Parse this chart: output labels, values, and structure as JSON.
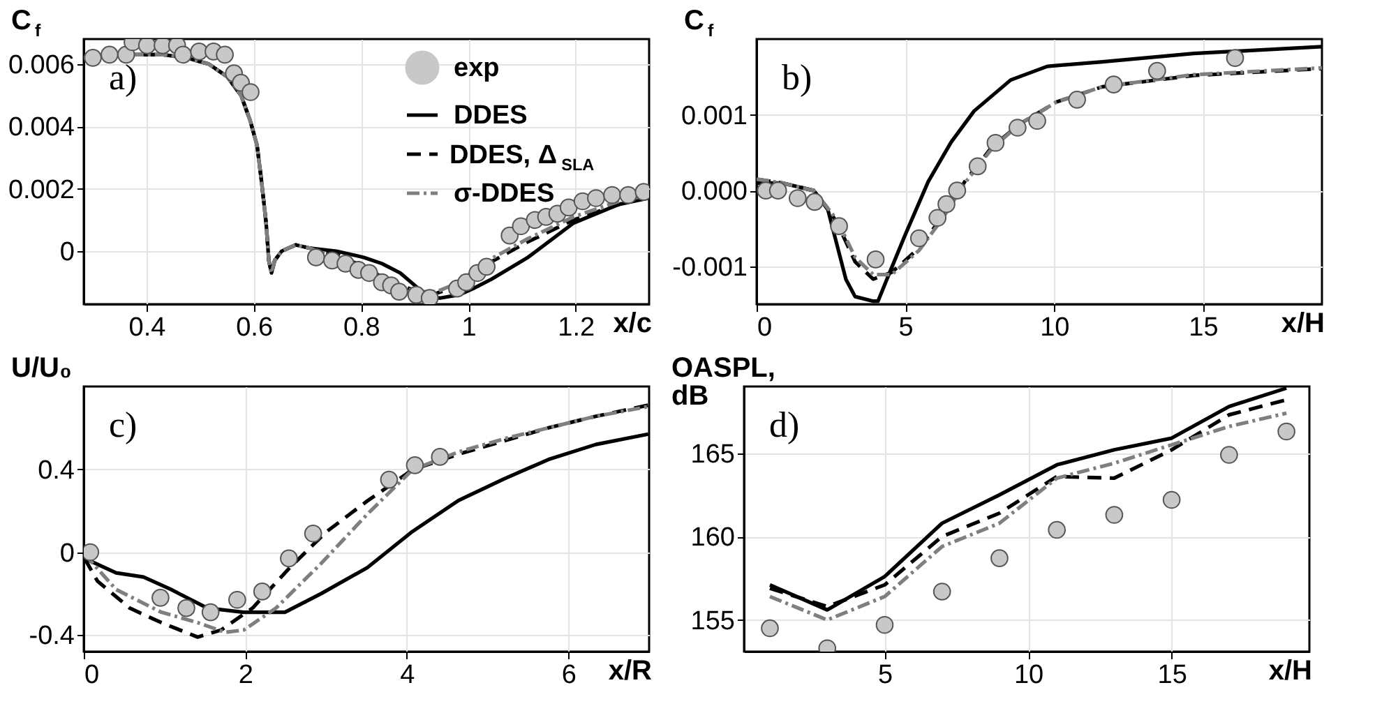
{
  "chart_data": [
    {
      "type": "line",
      "ylabel": "C$_{f}$",
      "xlabel": "x/c",
      "annotations": [
        "a)"
      ],
      "xlim": [
        0.283,
        1.337
      ],
      "ylim": [
        -0.0017,
        0.0068
      ],
      "xticks": [
        0.4,
        0.6,
        0.8,
        1,
        1.2
      ],
      "yticks": [
        0,
        0.002,
        0.004,
        0.006
      ],
      "grid": true,
      "legend": "top right",
      "series": [
        {
          "name": "exp",
          "type": "scatter",
          "marker": "circle",
          "color": "#c8c8c8",
          "x": [
            0.3,
            0.331,
            0.362,
            0.374,
            0.401,
            0.43,
            0.457,
            0.468,
            0.498,
            0.525,
            0.546,
            0.563,
            0.576,
            0.594,
            0.716,
            0.746,
            0.771,
            0.795,
            0.815,
            0.839,
            0.856,
            0.871,
            0.903,
            0.928,
            0.979,
            0.996,
            1.017,
            1.034,
            1.077,
            1.098,
            1.124,
            1.145,
            1.166,
            1.187,
            1.213,
            1.238,
            1.268,
            1.298,
            1.327
          ],
          "values": [
            0.0062,
            0.0063,
            0.0063,
            0.0067,
            0.0066,
            0.0066,
            0.0066,
            0.0063,
            0.0064,
            0.0064,
            0.0063,
            0.0057,
            0.0054,
            0.0051,
            -0.0002,
            -0.0003,
            -0.0004,
            -0.0006,
            -0.0007,
            -0.001,
            -0.0011,
            -0.0013,
            -0.0014,
            -0.0015,
            -0.0012,
            -0.001,
            -0.0007,
            -0.0005,
            0.0005,
            0.0008,
            0.001,
            0.0011,
            0.0012,
            0.0014,
            0.0016,
            0.0017,
            0.0018,
            0.0018,
            0.0019
          ]
        },
        {
          "name": "DDES",
          "line_style": "solid",
          "color": "#000000",
          "x": [
            0.283,
            0.346,
            0.431,
            0.474,
            0.516,
            0.55,
            0.576,
            0.593,
            0.606,
            0.614,
            0.623,
            0.628,
            0.633,
            0.639,
            0.652,
            0.678,
            0.703,
            0.754,
            0.805,
            0.839,
            0.873,
            0.907,
            0.928,
            0.949,
            0.983,
            1.009,
            1.043,
            1.111,
            1.196,
            1.281,
            1.336
          ],
          "values": [
            0.0062,
            0.0063,
            0.0063,
            0.0062,
            0.006,
            0.0056,
            0.005,
            0.0042,
            0.0034,
            0.0023,
            0.0009,
            -0.0003,
            -0.0007,
            -0.0003,
            0.0,
            0.0002,
            0.0001,
            0.0,
            -0.0002,
            -0.0004,
            -0.0007,
            -0.0012,
            -0.0015,
            -0.0015,
            -0.0014,
            -0.0012,
            -0.0009,
            -0.0002,
            0.0009,
            0.0015,
            0.0017
          ]
        },
        {
          "name": "DDES, Δ$_{SLA}$",
          "line_style": "dashed",
          "color": "#000000",
          "x": [
            0.283,
            0.346,
            0.431,
            0.474,
            0.516,
            0.55,
            0.576,
            0.593,
            0.606,
            0.614,
            0.623,
            0.628,
            0.633,
            0.639,
            0.652,
            0.678,
            0.703,
            0.754,
            0.805,
            0.856,
            0.907,
            0.932,
            0.983,
            1.026,
            1.111,
            1.196,
            1.281,
            1.336
          ],
          "values": [
            0.0062,
            0.0063,
            0.0063,
            0.0062,
            0.006,
            0.0056,
            0.005,
            0.0042,
            0.0034,
            0.0023,
            0.0009,
            -0.0003,
            -0.0007,
            -0.0003,
            0.0,
            0.0002,
            0.0001,
            -0.0001,
            -0.0005,
            -0.001,
            -0.0013,
            -0.0014,
            -0.0011,
            -0.0005,
            0.0003,
            0.001,
            0.0015,
            0.0018
          ]
        },
        {
          "name": "σ-DDES",
          "line_style": "dashdot",
          "color": "#7f7f7f",
          "x": [
            0.283,
            0.346,
            0.431,
            0.474,
            0.516,
            0.55,
            0.576,
            0.593,
            0.606,
            0.614,
            0.623,
            0.628,
            0.633,
            0.639,
            0.652,
            0.678,
            0.703,
            0.754,
            0.805,
            0.856,
            0.907,
            0.941,
            0.983,
            1.026,
            1.111,
            1.196,
            1.281,
            1.336
          ],
          "values": [
            0.0062,
            0.0063,
            0.0063,
            0.0062,
            0.006,
            0.0056,
            0.005,
            0.0042,
            0.0034,
            0.0023,
            0.0009,
            -0.0003,
            -0.0007,
            -0.0003,
            0.0,
            0.0002,
            0.0001,
            -0.0002,
            -0.0007,
            -0.0011,
            -0.0013,
            -0.0013,
            -0.001,
            -0.0004,
            0.0004,
            0.0011,
            0.0016,
            0.0018
          ]
        }
      ]
    },
    {
      "type": "line",
      "ylabel": "C$_{f}$",
      "xlabel": "x/H",
      "annotations": [
        "b)"
      ],
      "xlim": [
        0,
        19
      ],
      "ylim": [
        -0.0015,
        0.002
      ],
      "xticks": [
        0,
        5,
        10,
        15
      ],
      "yticks": [
        -0.001,
        {
          "value": 0,
          "label": "0.000"
        },
        0.001
      ],
      "grid": true,
      "series": [
        {
          "type": "scatter",
          "marker": "circle",
          "color": "#c8c8c8",
          "x": [
            0.31,
            0.72,
            1.38,
            1.95,
            2.77,
            4.0,
            5.46,
            6.08,
            6.38,
            6.74,
            7.43,
            8.03,
            8.77,
            9.43,
            10.77,
            12.0,
            13.46,
            16.08
          ],
          "values": [
            0.0,
            0.0,
            -0.0001,
            -0.00015,
            -0.00047,
            -0.00091,
            -0.00063,
            -0.00036,
            -0.00018,
            0.0,
            0.00032,
            0.00063,
            0.00083,
            0.00092,
            0.0012,
            0.0014,
            0.00158,
            0.00175
          ]
        },
        {
          "line_style": "solid",
          "color": "#000000",
          "x": [
            0,
            0.85,
            1.92,
            2.38,
            2.69,
            3.0,
            3.31,
            3.92,
            4.08,
            4.38,
            5.0,
            5.77,
            6.54,
            7.31,
            8.54,
            9.77,
            11.62,
            14.69,
            19.0
          ],
          "values": [
            0.0001,
            0.0001,
            0,
            -0.00023,
            -0.0007,
            -0.00117,
            -0.0014,
            -0.00146,
            -0.00146,
            -0.00117,
            -0.00058,
            0.00012,
            0.00064,
            0.00105,
            0.00146,
            0.00164,
            0.0017,
            0.00181,
            0.0019
          ]
        },
        {
          "line_style": "dashed",
          "color": "#000000",
          "x": [
            0,
            0.85,
            1.92,
            2.69,
            3.31,
            3.92,
            4.54,
            5.46,
            6.23,
            7.0,
            7.92,
            8.85,
            10.08,
            11.62,
            14.69,
            19.0
          ],
          "values": [
            0.00015,
            0.0001,
            0,
            -0.00041,
            -0.00094,
            -0.00117,
            -0.00108,
            -0.00076,
            -0.00035,
            0.00012,
            0.00058,
            0.00088,
            0.00117,
            0.00137,
            0.00152,
            0.00161
          ]
        },
        {
          "line_style": "dashdot",
          "color": "#7f7f7f",
          "x": [
            0,
            0.85,
            1.92,
            2.69,
            3.31,
            3.92,
            4.54,
            5.46,
            6.23,
            7.0,
            7.92,
            8.85,
            10.08,
            11.62,
            14.69,
            19.0
          ],
          "values": [
            0.00015,
            0.0001,
            0.0,
            -0.00038,
            -0.00088,
            -0.00111,
            -0.00111,
            -0.00079,
            -0.00038,
            0.0001,
            0.00056,
            0.00088,
            0.00117,
            0.00137,
            0.00153,
            0.00162
          ]
        }
      ]
    },
    {
      "type": "line",
      "ylabel": "U/U₀",
      "xlabel": "x/R",
      "annotations": [
        "c)"
      ],
      "xlim": [
        0,
        7
      ],
      "ylim": [
        -0.48,
        0.8
      ],
      "xticks": [
        0,
        2,
        4,
        6
      ],
      "yticks": [
        -0.4,
        0,
        0.4
      ],
      "grid": true,
      "series": [
        {
          "type": "scatter",
          "marker": "circle",
          "color": "#c8c8c8",
          "x": [
            0.08,
            0.95,
            1.27,
            1.57,
            1.9,
            2.21,
            2.54,
            2.84,
            3.78,
            4.1,
            4.41
          ],
          "values": [
            0,
            -0.22,
            -0.27,
            -0.29,
            -0.23,
            -0.19,
            -0.03,
            0.09,
            0.35,
            0.42,
            0.46
          ]
        },
        {
          "line_style": "solid",
          "color": "#000000",
          "x": [
            0.01,
            0.4,
            0.74,
            1.08,
            1.53,
            1.98,
            2.49,
            2.94,
            3.51,
            4.07,
            4.64,
            5.21,
            5.77,
            6.34,
            6.99
          ],
          "values": [
            -0.03,
            -0.1,
            -0.12,
            -0.18,
            -0.27,
            -0.29,
            -0.29,
            -0.2,
            -0.075,
            0.1,
            0.25,
            0.355,
            0.45,
            0.52,
            0.57
          ]
        },
        {
          "line_style": "dashed",
          "color": "#000000",
          "x": [
            0.01,
            0.17,
            0.57,
            0.96,
            1.41,
            1.7,
            2.09,
            2.55,
            3.0,
            3.51,
            4.07,
            4.64,
            5.21,
            5.77,
            6.34,
            6.99
          ],
          "values": [
            -0.03,
            -0.14,
            -0.27,
            -0.34,
            -0.41,
            -0.376,
            -0.27,
            -0.075,
            0.097,
            0.247,
            0.398,
            0.473,
            0.538,
            0.602,
            0.656,
            0.71
          ]
        },
        {
          "line_style": "dashdot",
          "color": "#7f7f7f",
          "x": [
            0.01,
            0.4,
            0.96,
            1.41,
            1.75,
            1.98,
            2.38,
            2.94,
            3.51,
            4.07,
            4.64,
            5.21,
            5.77,
            6.34,
            6.99
          ],
          "values": [
            -0.01,
            -0.18,
            -0.29,
            -0.34,
            -0.387,
            -0.376,
            -0.27,
            -0.054,
            0.183,
            0.398,
            0.484,
            0.548,
            0.602,
            0.656,
            0.703
          ]
        }
      ]
    },
    {
      "type": "line",
      "ylabel": "OASPL,\ndB",
      "xlabel": "x/H",
      "annotations": [
        "d)"
      ],
      "xlim": [
        0.1,
        19.8
      ],
      "ylim": [
        153.1,
        169.0
      ],
      "xticks": [
        5,
        10,
        15
      ],
      "yticks": [
        155,
        160,
        165
      ],
      "grid": true,
      "series": [
        {
          "type": "scatter",
          "marker": "circle",
          "color": "#c8c8c8",
          "x": [
            1,
            3,
            5,
            7,
            9,
            11,
            13,
            15,
            17,
            19
          ],
          "values": [
            154.5,
            153.3,
            154.7,
            156.7,
            158.7,
            160.4,
            161.3,
            162.2,
            164.9,
            166.3
          ]
        },
        {
          "line_style": "solid",
          "color": "#000000",
          "x": [
            1,
            3,
            5,
            7,
            9,
            11,
            13,
            15,
            17,
            19
          ],
          "values": [
            157.1,
            155.6,
            157.6,
            160.8,
            162.5,
            164.3,
            165.2,
            165.9,
            167.8,
            168.9
          ]
        },
        {
          "line_style": "dashed",
          "color": "#000000",
          "x": [
            1,
            3,
            5,
            7,
            9,
            11,
            13,
            15,
            17,
            19
          ],
          "values": [
            156.9,
            155.8,
            157.1,
            160.0,
            161.4,
            163.6,
            163.5,
            165.2,
            167.3,
            168.2
          ]
        },
        {
          "line_style": "dashdot",
          "color": "#7f7f7f",
          "x": [
            1,
            3,
            5,
            7,
            9,
            11,
            13,
            15,
            17,
            19
          ],
          "values": [
            156.4,
            155.0,
            156.4,
            159.4,
            160.8,
            163.5,
            164.4,
            165.5,
            166.6,
            167.4
          ]
        }
      ]
    }
  ]
}
